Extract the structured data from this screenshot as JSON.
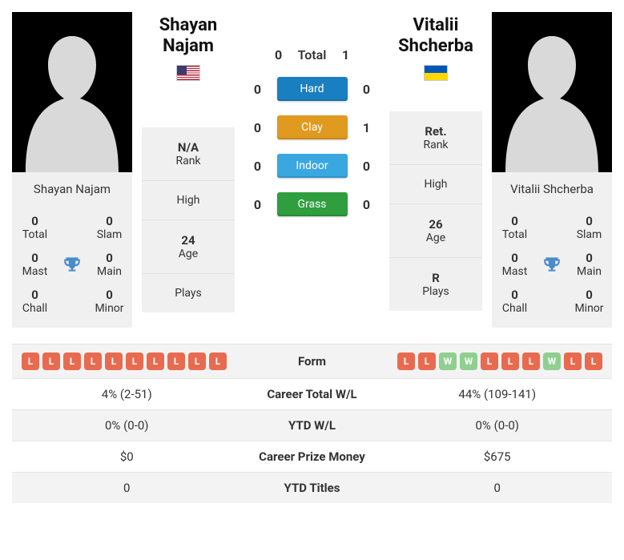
{
  "players": {
    "left": {
      "name": "Shayan Najam",
      "flag": "us",
      "info": {
        "rank_val": "N/A",
        "rank_lbl": "Rank",
        "high_val": "",
        "high_lbl": "High",
        "age_val": "24",
        "age_lbl": "Age",
        "plays_val": "",
        "plays_lbl": "Plays"
      },
      "titles": {
        "total": "0",
        "slam": "0",
        "mast": "0",
        "main": "0",
        "chall": "0",
        "minor": "0"
      }
    },
    "right": {
      "name": "Vitalii Shcherba",
      "flag": "ua",
      "info": {
        "rank_val": "Ret.",
        "rank_lbl": "Rank",
        "high_val": "",
        "high_lbl": "High",
        "age_val": "26",
        "age_lbl": "Age",
        "plays_val": "R",
        "plays_lbl": "Plays"
      },
      "titles": {
        "total": "0",
        "slam": "0",
        "mast": "0",
        "main": "0",
        "chall": "0",
        "minor": "0"
      }
    }
  },
  "title_labels": {
    "total": "Total",
    "slam": "Slam",
    "mast": "Mast",
    "main": "Main",
    "chall": "Chall",
    "minor": "Minor"
  },
  "h2h": {
    "total": {
      "l": "0",
      "label": "Total",
      "r": "1"
    },
    "hard": {
      "l": "0",
      "label": "Hard",
      "r": "0"
    },
    "clay": {
      "l": "0",
      "label": "Clay",
      "r": "1"
    },
    "indoor": {
      "l": "0",
      "label": "Indoor",
      "r": "0"
    },
    "grass": {
      "l": "0",
      "label": "Grass",
      "r": "0"
    },
    "colors": {
      "hard": "#1a7fc0",
      "clay": "#e09a1f",
      "indoor": "#3aa7e0",
      "grass": "#2e9e3f"
    }
  },
  "form": {
    "left": [
      "L",
      "L",
      "L",
      "L",
      "L",
      "L",
      "L",
      "L",
      "L",
      "L"
    ],
    "right": [
      "L",
      "L",
      "W",
      "W",
      "L",
      "L",
      "L",
      "W",
      "L",
      "L"
    ],
    "chip_colors": {
      "W": "#8fcf8f",
      "L": "#e86a4f"
    }
  },
  "stats": {
    "rows": [
      {
        "label": "Form",
        "type": "form"
      },
      {
        "label": "Career Total W/L",
        "left": "4% (2-51)",
        "right": "44% (109-141)"
      },
      {
        "label": "YTD W/L",
        "left": "0% (0-0)",
        "right": "0% (0-0)"
      },
      {
        "label": "Career Prize Money",
        "left": "$0",
        "right": "$675"
      },
      {
        "label": "YTD Titles",
        "left": "0",
        "right": "0"
      }
    ]
  },
  "style": {
    "bg": "#ffffff",
    "panel": "#f0f0f0",
    "text": "#333333",
    "border": "#e2e2e2"
  }
}
